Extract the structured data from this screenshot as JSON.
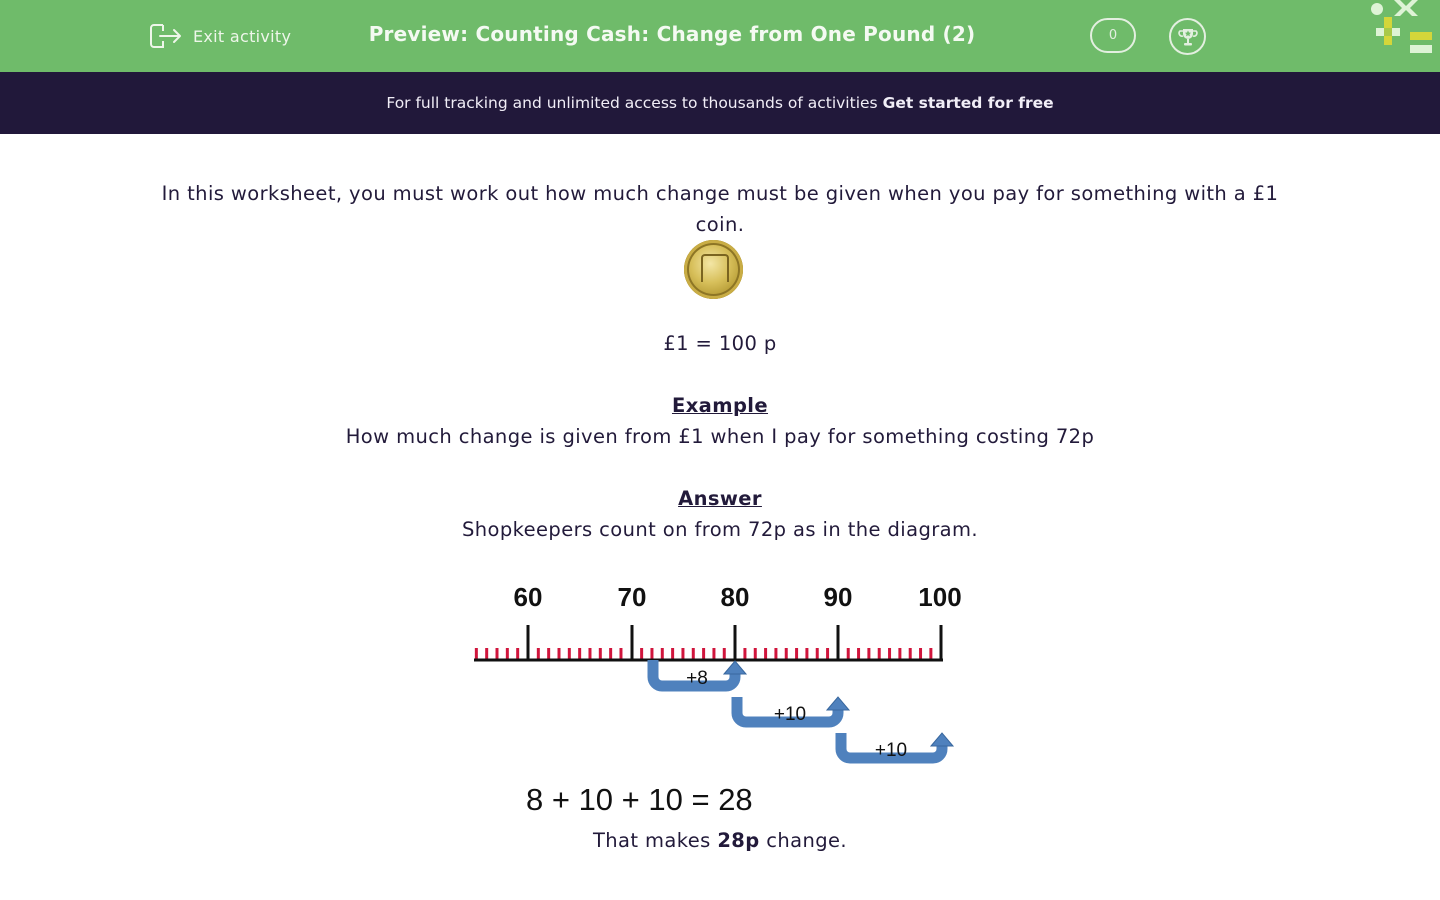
{
  "header": {
    "exit_label": "Exit activity",
    "title": "Preview: Counting Cash: Change from One Pound (2)",
    "score": "0",
    "colors": {
      "bar": "#6fbb6a",
      "logo_yellow": "#d4d63a",
      "logo_light": "#def3d6"
    }
  },
  "banner": {
    "text": "For full tracking and unlimited access to thousands of activities",
    "cta": "Get started for free",
    "color": "#21183a"
  },
  "content": {
    "intro": "In this worksheet, you must work out how much change must be given when you pay for something with a £1 coin.",
    "coin_alt": "£1 coin",
    "equivalence": "£1 = 100 p",
    "example_heading": "Example",
    "example_question": "How much change is given from £1 when I pay for something costing 72p",
    "answer_heading": "Answer",
    "answer_text": "Shopkeepers count on from 72p as in the diagram.",
    "sum": "8 + 10 + 10 = 28",
    "conclusion_prefix": "That makes",
    "conclusion_bold": "28p",
    "conclusion_suffix": "change."
  },
  "diagram": {
    "number_line_labels": [
      "60",
      "70",
      "80",
      "90",
      "100"
    ],
    "start_value": 72,
    "jumps": [
      {
        "label": "+8",
        "from": 72,
        "to": 80
      },
      {
        "label": "+10",
        "from": 80,
        "to": 90
      },
      {
        "label": "+10",
        "from": 90,
        "to": 100
      }
    ],
    "colors": {
      "minor_tick": "#d0153c",
      "major_tick": "#111111",
      "arrow": "#4f81bd",
      "arrow_stroke": "#38679e"
    }
  }
}
